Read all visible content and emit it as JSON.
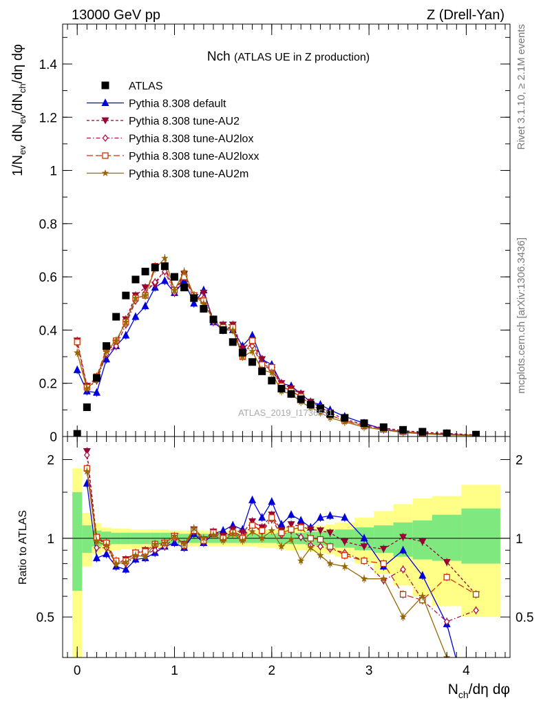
{
  "header": {
    "left": "13000 GeV pp",
    "right": "Z (Drell-Yan)"
  },
  "title": {
    "main": "Nch",
    "sub": "(ATLAS UE in Z production)"
  },
  "side_labels": {
    "rivet": "Rivet 3.1.10, ≥ 2.1M events",
    "mcplots": "mcplots.cern.ch [arXiv:1306.3436]"
  },
  "watermark": "ATLAS_2019_I1736531",
  "chart_data": [
    {
      "type": "scatter",
      "panel": "main",
      "ylabel": "1/N_ev dN_ev/dN_ch/dη dφ",
      "xlim": [
        -0.15,
        4.45
      ],
      "ylim": [
        0,
        1.55
      ],
      "yticks": [
        0,
        0.2,
        0.4,
        0.6,
        0.8,
        1,
        1.2,
        1.4
      ],
      "ytick_labels": [
        "0",
        "0.2",
        "0.4",
        "0.6",
        "0.8",
        "1",
        "1.2",
        "1.4"
      ],
      "grid": false,
      "legend_position": "top-left",
      "x": [
        0.0,
        0.1,
        0.2,
        0.3,
        0.4,
        0.5,
        0.6,
        0.7,
        0.8,
        0.9,
        1.0,
        1.1,
        1.2,
        1.3,
        1.4,
        1.5,
        1.6,
        1.7,
        1.8,
        1.9,
        2.0,
        2.1,
        2.2,
        2.3,
        2.4,
        2.5,
        2.6,
        2.75,
        2.95,
        3.15,
        3.35,
        3.55,
        3.8,
        4.1
      ],
      "series": [
        {
          "name": "ATLAS",
          "color": "#000000",
          "marker": "square-filled",
          "line": "none",
          "values": [
            0.01,
            0.11,
            0.22,
            0.34,
            0.45,
            0.53,
            0.59,
            0.62,
            0.635,
            0.64,
            0.6,
            0.56,
            0.52,
            0.48,
            0.44,
            0.4,
            0.355,
            0.315,
            0.28,
            0.245,
            0.21,
            0.18,
            0.16,
            0.14,
            0.12,
            0.105,
            0.085,
            0.07,
            0.05,
            0.035,
            0.025,
            0.018,
            0.012,
            0.007
          ]
        },
        {
          "name": "Pythia 8.308 default",
          "color": "#0000dd",
          "marker": "triangle-filled",
          "line": "solid",
          "values": [
            0.25,
            0.17,
            0.165,
            0.29,
            0.34,
            0.38,
            0.45,
            0.49,
            0.56,
            0.585,
            0.54,
            0.585,
            0.5,
            0.55,
            0.43,
            0.4,
            0.4,
            0.34,
            0.38,
            0.29,
            0.27,
            0.2,
            0.19,
            0.16,
            0.13,
            0.12,
            0.1,
            0.075,
            0.05,
            0.027,
            0.018,
            0.012,
            0.009,
            0.004
          ]
        },
        {
          "name": "Pythia 8.308 tune-AU2",
          "color": "#990033",
          "marker": "triangle-down-filled",
          "line": "dashed",
          "values": [
            0.36,
            0.19,
            0.22,
            0.32,
            0.35,
            0.44,
            0.53,
            0.56,
            0.57,
            0.63,
            0.55,
            0.61,
            0.53,
            0.54,
            0.44,
            0.42,
            0.42,
            0.33,
            0.36,
            0.29,
            0.26,
            0.2,
            0.18,
            0.16,
            0.13,
            0.11,
            0.09,
            0.065,
            0.045,
            0.032,
            0.022,
            0.016,
            0.012,
            0.006
          ]
        },
        {
          "name": "Pythia 8.308 tune-AU2lox",
          "color": "#aa1144",
          "marker": "diamond-open",
          "line": "dashdot",
          "values": [
            0.35,
            0.18,
            0.21,
            0.31,
            0.34,
            0.42,
            0.51,
            0.54,
            0.58,
            0.62,
            0.54,
            0.6,
            0.52,
            0.52,
            0.43,
            0.4,
            0.41,
            0.31,
            0.34,
            0.27,
            0.25,
            0.19,
            0.17,
            0.15,
            0.12,
            0.1,
            0.08,
            0.06,
            0.04,
            0.028,
            0.018,
            0.012,
            0.008,
            0.004
          ]
        },
        {
          "name": "Pythia 8.308 tune-AU2loxx",
          "color": "#cc3300",
          "marker": "square-open",
          "line": "longdash",
          "values": [
            0.355,
            0.185,
            0.225,
            0.33,
            0.36,
            0.43,
            0.52,
            0.53,
            0.64,
            0.64,
            0.55,
            0.6,
            0.53,
            0.51,
            0.44,
            0.41,
            0.41,
            0.3,
            0.36,
            0.27,
            0.26,
            0.19,
            0.17,
            0.15,
            0.12,
            0.1,
            0.08,
            0.06,
            0.04,
            0.028,
            0.018,
            0.012,
            0.008,
            0.004
          ]
        },
        {
          "name": "Pythia 8.308 tune-AU2m",
          "color": "#996600",
          "marker": "star",
          "line": "solid",
          "values": [
            0.315,
            0.18,
            0.215,
            0.32,
            0.36,
            0.43,
            0.52,
            0.53,
            0.63,
            0.67,
            0.55,
            0.62,
            0.53,
            0.5,
            0.44,
            0.4,
            0.4,
            0.3,
            0.32,
            0.25,
            0.24,
            0.17,
            0.16,
            0.13,
            0.11,
            0.09,
            0.07,
            0.055,
            0.035,
            0.025,
            0.015,
            0.01,
            0.006,
            0.003
          ]
        }
      ]
    },
    {
      "type": "line",
      "panel": "ratio",
      "xlabel": "N_ch/dη dφ",
      "ylabel": "Ratio to ATLAS",
      "xlim": [
        -0.15,
        4.45
      ],
      "ylim": [
        0.35,
        2.45
      ],
      "xticks": [
        0,
        1,
        2,
        3,
        4
      ],
      "xtick_labels": [
        "0",
        "1",
        "2",
        "3",
        "4"
      ],
      "yticks": [
        0.5,
        1,
        2
      ],
      "ytick_labels": [
        "0.5",
        "1",
        "2"
      ],
      "reference_line": 1,
      "uncertainty_bands": {
        "green_color": "#7fe87f",
        "yellow_color": "#ffff88",
        "edges": [
          -0.05,
          0.05,
          0.15,
          0.25,
          0.35,
          0.45,
          0.55,
          0.65,
          0.75,
          0.85,
          0.95,
          1.05,
          1.15,
          1.25,
          1.35,
          1.45,
          1.55,
          1.65,
          1.75,
          1.85,
          1.95,
          2.05,
          2.15,
          2.25,
          2.35,
          2.45,
          2.55,
          2.65,
          2.85,
          3.05,
          3.25,
          3.45,
          3.65,
          3.95,
          4.35
        ],
        "green_lo": [
          0.63,
          0.88,
          0.93,
          0.94,
          0.95,
          0.95,
          0.95,
          0.95,
          0.95,
          0.95,
          0.95,
          0.96,
          0.96,
          0.96,
          0.96,
          0.96,
          0.96,
          0.96,
          0.96,
          0.96,
          0.96,
          0.95,
          0.95,
          0.95,
          0.94,
          0.94,
          0.93,
          0.92,
          0.9,
          0.88,
          0.85,
          0.83,
          0.82,
          0.8
        ],
        "green_hi": [
          1.5,
          1.12,
          1.07,
          1.06,
          1.05,
          1.05,
          1.05,
          1.05,
          1.05,
          1.05,
          1.05,
          1.04,
          1.04,
          1.04,
          1.04,
          1.04,
          1.04,
          1.04,
          1.04,
          1.04,
          1.04,
          1.05,
          1.05,
          1.05,
          1.06,
          1.06,
          1.07,
          1.08,
          1.1,
          1.12,
          1.15,
          1.17,
          1.23,
          1.3
        ],
        "yellow_lo": [
          0.35,
          0.78,
          0.87,
          0.89,
          0.9,
          0.91,
          0.91,
          0.92,
          0.92,
          0.92,
          0.93,
          0.93,
          0.93,
          0.93,
          0.93,
          0.93,
          0.93,
          0.93,
          0.93,
          0.92,
          0.92,
          0.91,
          0.9,
          0.9,
          0.89,
          0.88,
          0.87,
          0.85,
          0.8,
          0.73,
          0.66,
          0.6,
          0.55,
          0.5
        ],
        "yellow_hi": [
          1.85,
          1.25,
          1.14,
          1.1,
          1.09,
          1.09,
          1.08,
          1.08,
          1.08,
          1.08,
          1.07,
          1.07,
          1.07,
          1.07,
          1.07,
          1.07,
          1.07,
          1.07,
          1.07,
          1.08,
          1.08,
          1.09,
          1.1,
          1.1,
          1.11,
          1.12,
          1.13,
          1.15,
          1.2,
          1.27,
          1.35,
          1.42,
          1.45,
          1.6
        ]
      },
      "x": [
        0.1,
        0.2,
        0.3,
        0.4,
        0.5,
        0.6,
        0.7,
        0.8,
        0.9,
        1.0,
        1.1,
        1.2,
        1.3,
        1.4,
        1.5,
        1.6,
        1.7,
        1.8,
        1.9,
        2.0,
        2.1,
        2.2,
        2.3,
        2.4,
        2.5,
        2.6,
        2.75,
        2.95,
        3.15,
        3.35,
        3.55,
        3.8,
        4.1
      ],
      "series": [
        {
          "name": "Pythia 8.308 default",
          "color": "#0000dd",
          "marker": "triangle-filled",
          "line": "solid",
          "values": [
            1.62,
            0.84,
            0.87,
            0.78,
            0.76,
            0.83,
            0.84,
            0.88,
            0.93,
            0.96,
            0.92,
            1.04,
            0.96,
            1.04,
            1.07,
            1.12,
            1.08,
            1.4,
            1.2,
            1.38,
            1.13,
            1.23,
            1.17,
            1.1,
            1.2,
            1.22,
            1.2,
            1.0,
            0.78,
            0.9,
            0.72,
            0.47,
            0.18
          ]
        },
        {
          "name": "Pythia 8.308 tune-AU2",
          "color": "#990033",
          "marker": "triangle-down-filled",
          "line": "dashed",
          "values": [
            2.15,
            1.0,
            0.95,
            0.8,
            0.83,
            0.88,
            0.9,
            0.92,
            0.96,
            1.02,
            0.95,
            1.08,
            0.99,
            1.06,
            1.02,
            1.08,
            1.05,
            1.16,
            1.1,
            1.23,
            1.07,
            1.13,
            1.11,
            1.08,
            1.07,
            1.05,
            0.97,
            0.93,
            0.91,
            1.01,
            0.97,
            0.81,
            0.61
          ]
        },
        {
          "name": "Pythia 8.308 tune-AU2lox",
          "color": "#aa1144",
          "marker": "diamond-open",
          "line": "dashdot",
          "values": [
            2.08,
            0.92,
            0.92,
            0.8,
            0.8,
            0.85,
            0.87,
            0.9,
            0.93,
            1.0,
            0.93,
            1.06,
            0.97,
            1.04,
            1.0,
            1.06,
            1.02,
            1.12,
            1.06,
            1.18,
            1.03,
            1.07,
            1.01,
            0.94,
            0.93,
            0.91,
            0.88,
            0.82,
            0.69,
            0.76,
            0.58,
            0.48,
            0.53
          ]
        },
        {
          "name": "Pythia 8.308 tune-AU2loxx",
          "color": "#cc3300",
          "marker": "square-open",
          "line": "longdash",
          "values": [
            1.85,
            1.01,
            0.96,
            0.82,
            0.82,
            0.88,
            0.89,
            0.95,
            0.96,
            1.02,
            0.94,
            1.07,
            0.98,
            1.05,
            1.0,
            1.05,
            1.0,
            1.12,
            1.07,
            1.2,
            1.05,
            1.08,
            1.1,
            1.0,
            0.99,
            0.93,
            0.86,
            0.82,
            0.8,
            0.61,
            0.58,
            0.71,
            0.61
          ]
        },
        {
          "name": "Pythia 8.308 tune-AU2m",
          "color": "#996600",
          "marker": "star",
          "line": "solid",
          "values": [
            1.8,
            0.97,
            0.94,
            0.8,
            0.81,
            0.86,
            0.85,
            0.95,
            0.96,
            1.02,
            0.95,
            1.09,
            1.0,
            1.03,
            0.98,
            1.04,
            0.98,
            1.06,
            1.0,
            1.07,
            0.93,
            0.99,
            0.82,
            0.92,
            0.86,
            0.8,
            0.78,
            0.7,
            0.7,
            0.5,
            0.6,
            0.35,
            0.3
          ]
        }
      ]
    }
  ]
}
